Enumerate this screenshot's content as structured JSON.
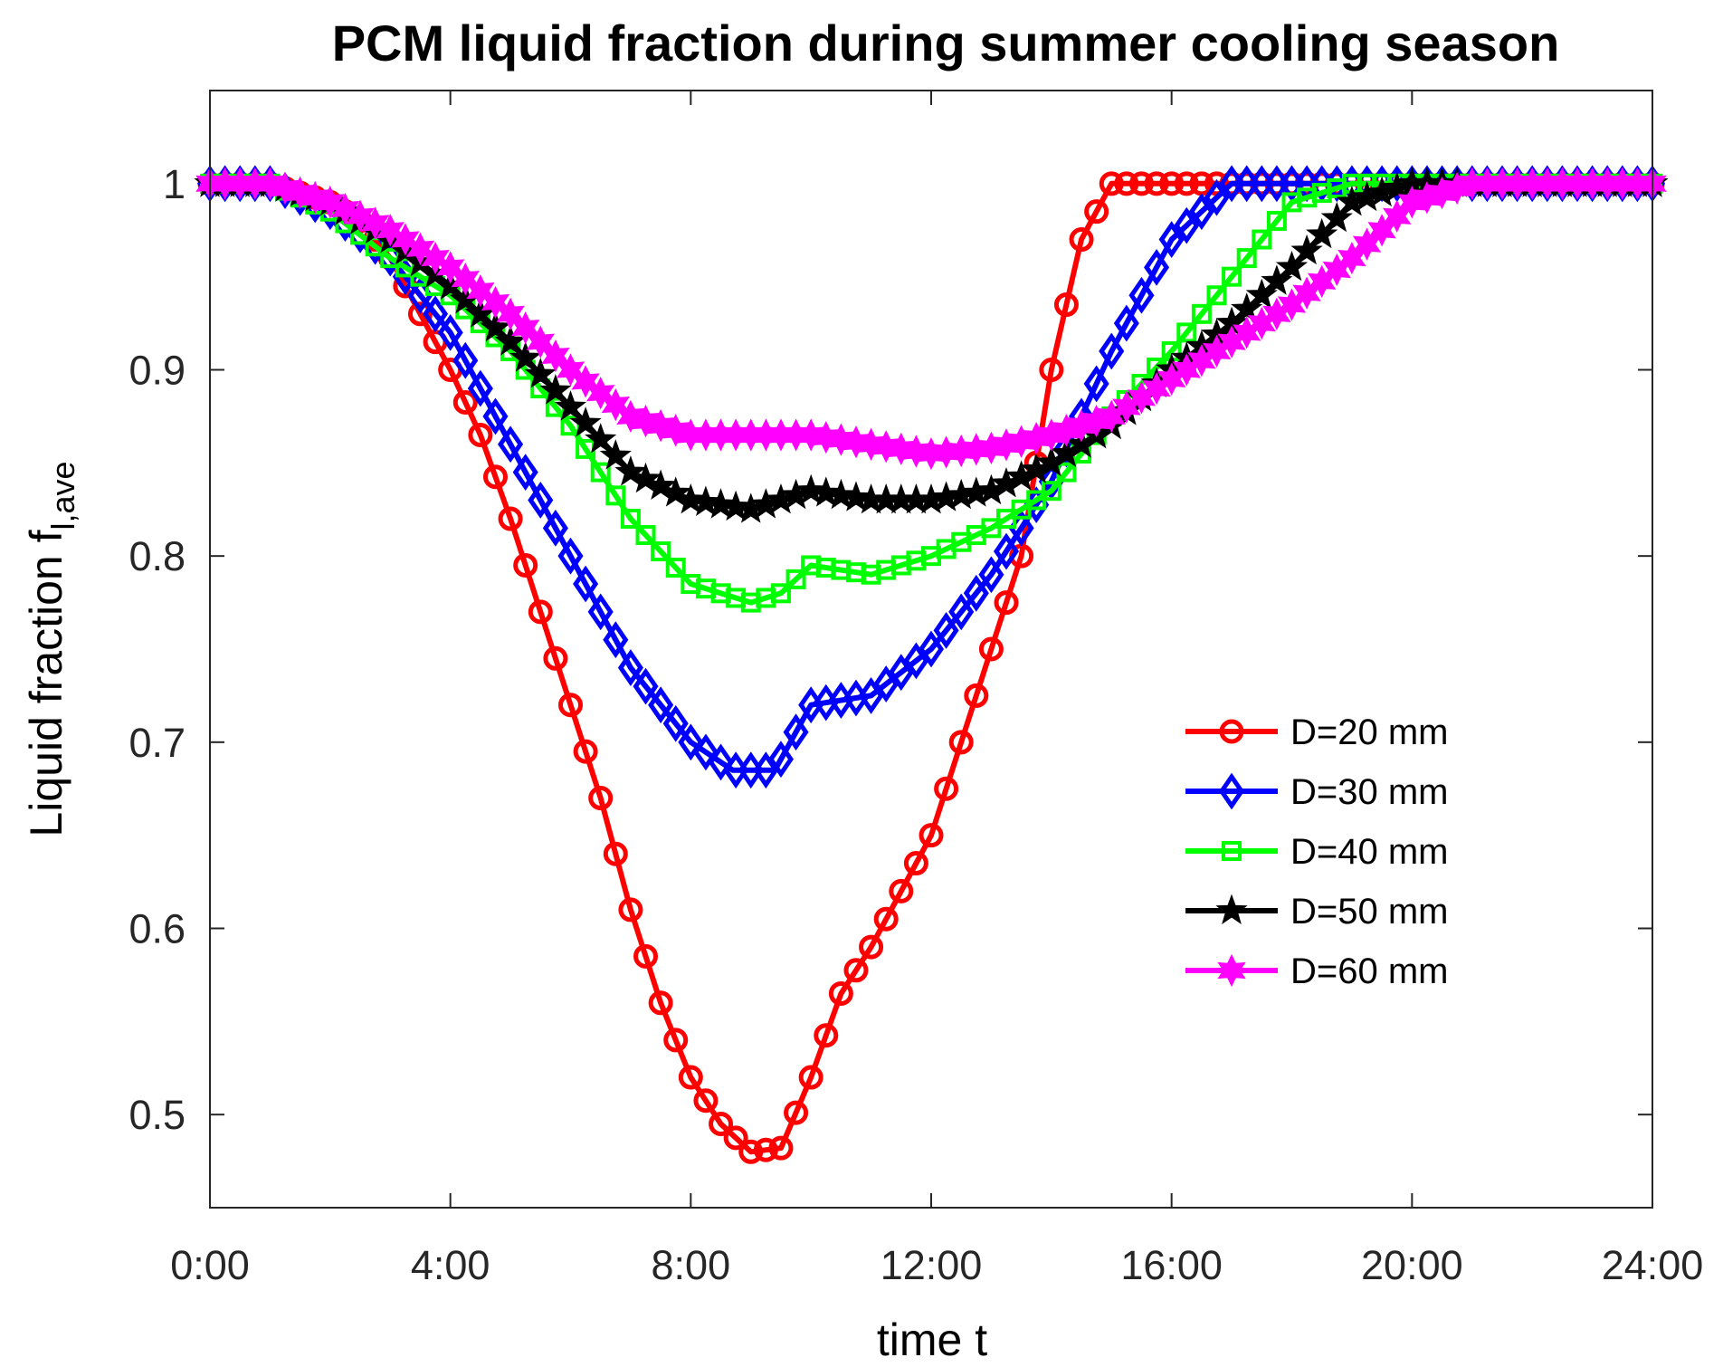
{
  "chart_data": {
    "type": "line",
    "title": "PCM liquid fraction during summer cooling season",
    "xlabel": "time t",
    "ylabel_main": "Liquid fraction f",
    "ylabel_sub": "l,ave",
    "xlim": [
      0,
      24
    ],
    "ylim": [
      0.45,
      1.05
    ],
    "xticks": [
      {
        "value": 0,
        "label": "0:00"
      },
      {
        "value": 4,
        "label": "4:00"
      },
      {
        "value": 8,
        "label": "8:00"
      },
      {
        "value": 12,
        "label": "12:00"
      },
      {
        "value": 16,
        "label": "16:00"
      },
      {
        "value": 20,
        "label": "20:00"
      },
      {
        "value": 24,
        "label": "24:00"
      }
    ],
    "yticks": [
      {
        "value": 0.5,
        "label": "0.5"
      },
      {
        "value": 0.6,
        "label": "0.6"
      },
      {
        "value": 0.7,
        "label": "0.7"
      },
      {
        "value": 0.8,
        "label": "0.8"
      },
      {
        "value": 0.9,
        "label": "0.9"
      },
      {
        "value": 1.0,
        "label": "1"
      }
    ],
    "legend_position": "right-middle",
    "marker_interval_hours": 0.25,
    "series": [
      {
        "name": "D=20 mm",
        "color": "#ff0000",
        "marker": "circle",
        "points": [
          [
            0,
            1.0
          ],
          [
            1,
            1.0
          ],
          [
            2,
            0.99
          ],
          [
            2.5,
            0.98
          ],
          [
            3,
            0.96
          ],
          [
            3.5,
            0.93
          ],
          [
            4,
            0.9
          ],
          [
            4.5,
            0.865
          ],
          [
            5,
            0.82
          ],
          [
            5.5,
            0.77
          ],
          [
            6,
            0.72
          ],
          [
            6.5,
            0.67
          ],
          [
            7,
            0.61
          ],
          [
            7.5,
            0.56
          ],
          [
            8,
            0.52
          ],
          [
            8.5,
            0.495
          ],
          [
            9,
            0.48
          ],
          [
            9.5,
            0.482
          ],
          [
            10,
            0.52
          ],
          [
            10.5,
            0.565
          ],
          [
            11,
            0.59
          ],
          [
            11.5,
            0.62
          ],
          [
            12,
            0.65
          ],
          [
            12.5,
            0.7
          ],
          [
            13,
            0.75
          ],
          [
            13.5,
            0.8
          ],
          [
            14,
            0.9
          ],
          [
            14.5,
            0.97
          ],
          [
            15,
            1.0
          ],
          [
            24,
            1.0
          ]
        ]
      },
      {
        "name": "D=30 mm",
        "color": "#0000ff",
        "marker": "diamond",
        "points": [
          [
            0,
            1.0
          ],
          [
            1,
            1.0
          ],
          [
            2,
            0.985
          ],
          [
            3,
            0.96
          ],
          [
            4,
            0.92
          ],
          [
            5,
            0.86
          ],
          [
            6,
            0.8
          ],
          [
            7,
            0.74
          ],
          [
            8,
            0.7
          ],
          [
            8.7,
            0.685
          ],
          [
            9.4,
            0.685
          ],
          [
            10,
            0.72
          ],
          [
            11,
            0.725
          ],
          [
            12,
            0.75
          ],
          [
            13,
            0.79
          ],
          [
            14,
            0.84
          ],
          [
            15,
            0.91
          ],
          [
            16,
            0.97
          ],
          [
            17,
            1.0
          ],
          [
            24,
            1.0
          ]
        ]
      },
      {
        "name": "D=40 mm",
        "color": "#00ff00",
        "marker": "square",
        "points": [
          [
            0,
            1.0
          ],
          [
            1,
            1.0
          ],
          [
            2,
            0.985
          ],
          [
            3,
            0.96
          ],
          [
            4,
            0.94
          ],
          [
            5,
            0.91
          ],
          [
            6,
            0.87
          ],
          [
            7,
            0.82
          ],
          [
            8,
            0.785
          ],
          [
            9,
            0.775
          ],
          [
            9.5,
            0.78
          ],
          [
            10,
            0.795
          ],
          [
            11,
            0.79
          ],
          [
            12,
            0.8
          ],
          [
            13,
            0.815
          ],
          [
            14,
            0.835
          ],
          [
            15,
            0.875
          ],
          [
            16,
            0.91
          ],
          [
            17,
            0.95
          ],
          [
            18,
            0.99
          ],
          [
            19,
            1.0
          ],
          [
            24,
            1.0
          ]
        ]
      },
      {
        "name": "D=50 mm",
        "color": "#000000",
        "marker": "star",
        "points": [
          [
            0,
            1.0
          ],
          [
            1,
            1.0
          ],
          [
            2,
            0.99
          ],
          [
            3,
            0.97
          ],
          [
            4,
            0.945
          ],
          [
            5,
            0.915
          ],
          [
            6,
            0.88
          ],
          [
            7,
            0.845
          ],
          [
            8,
            0.83
          ],
          [
            9,
            0.825
          ],
          [
            10,
            0.835
          ],
          [
            11,
            0.83
          ],
          [
            12,
            0.83
          ],
          [
            13,
            0.835
          ],
          [
            14,
            0.85
          ],
          [
            15,
            0.87
          ],
          [
            16,
            0.9
          ],
          [
            17,
            0.925
          ],
          [
            18,
            0.955
          ],
          [
            19,
            0.99
          ],
          [
            20,
            1.0
          ],
          [
            24,
            1.0
          ]
        ]
      },
      {
        "name": "D=60 mm",
        "color": "#ff00ff",
        "marker": "hexagram",
        "points": [
          [
            0,
            1.0
          ],
          [
            1,
            1.0
          ],
          [
            2,
            0.99
          ],
          [
            3,
            0.975
          ],
          [
            4,
            0.955
          ],
          [
            5,
            0.93
          ],
          [
            6,
            0.9
          ],
          [
            7,
            0.875
          ],
          [
            8,
            0.865
          ],
          [
            9,
            0.865
          ],
          [
            10,
            0.865
          ],
          [
            11,
            0.86
          ],
          [
            12,
            0.855
          ],
          [
            13,
            0.858
          ],
          [
            14,
            0.865
          ],
          [
            15,
            0.875
          ],
          [
            16,
            0.895
          ],
          [
            17,
            0.915
          ],
          [
            18,
            0.935
          ],
          [
            19,
            0.96
          ],
          [
            20,
            0.99
          ],
          [
            21,
            1.0
          ],
          [
            24,
            1.0
          ]
        ]
      }
    ]
  }
}
